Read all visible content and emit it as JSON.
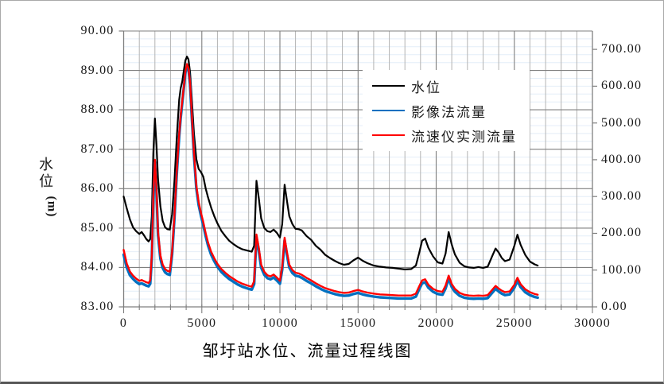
{
  "window": {
    "background": "#FFFFFF",
    "frame_border": "#A9A9A9"
  },
  "chart_data": {
    "type": "line",
    "title": "邹圩站水位、流量过程线图",
    "legend_position": "upper-center",
    "grid": {
      "major_color": "#7F7F7F",
      "minor_vertical_color": "#B3B3B3",
      "minor_horizontal_color": "#E4EEF8",
      "axis_color": "#7F7F7F",
      "grid_on": true
    },
    "left_axis": {
      "label": "水位",
      "unit_label": "(m)",
      "min": 83,
      "max": 90,
      "major_step": 1,
      "minor_step": 0.2,
      "tick_labels": [
        "90.00",
        "89.00",
        "88.00",
        "87.00",
        "86.00",
        "85.00",
        "84.00",
        "83.00"
      ]
    },
    "right_axis": {
      "min": 0,
      "max": 750,
      "major_step": 100,
      "tick_labels": [
        "700.00",
        "600.00",
        "500.00",
        "400.00",
        "300.00",
        "200.00",
        "100.00",
        "0.00"
      ]
    },
    "x_axis": {
      "min": 0,
      "max": 30000,
      "major_step": 5000,
      "minor_step": 1000,
      "tick_labels": [
        "0",
        "5000",
        "10000",
        "15000",
        "20000",
        "25000",
        "30000"
      ]
    },
    "x": [
      0,
      200,
      400,
      600,
      800,
      1000,
      1150,
      1300,
      1450,
      1600,
      1700,
      1800,
      1900,
      2000,
      2100,
      2200,
      2350,
      2500,
      2650,
      2800,
      2950,
      3100,
      3250,
      3400,
      3550,
      3650,
      3750,
      3850,
      3950,
      4050,
      4150,
      4250,
      4350,
      4500,
      4650,
      4800,
      4950,
      5100,
      5250,
      5400,
      5600,
      5800,
      6000,
      6250,
      6500,
      6750,
      7000,
      7300,
      7600,
      8000,
      8200,
      8350,
      8500,
      8650,
      8800,
      9000,
      9200,
      9400,
      9600,
      9800,
      10000,
      10150,
      10300,
      10450,
      10600,
      10800,
      11000,
      11200,
      11400,
      11700,
      12000,
      12300,
      12600,
      12900,
      13200,
      13500,
      13800,
      14100,
      14400,
      14700,
      15000,
      15300,
      15600,
      16000,
      16400,
      16800,
      17200,
      17600,
      18000,
      18400,
      18700,
      18900,
      19100,
      19300,
      19500,
      19800,
      20100,
      20400,
      20600,
      20800,
      21000,
      21200,
      21500,
      21800,
      22100,
      22400,
      22700,
      23000,
      23300,
      23600,
      23800,
      24000,
      24200,
      24400,
      24700,
      25000,
      25200,
      25400,
      25700,
      26000,
      26300,
      26500
    ],
    "series": [
      {
        "name": "水位",
        "axis": "left",
        "color": "#000000",
        "width": 2.2,
        "values": [
          85.8,
          85.5,
          85.22,
          85.02,
          84.92,
          84.85,
          84.9,
          84.82,
          84.72,
          84.66,
          84.72,
          85.3,
          86.9,
          87.78,
          87.1,
          86.25,
          85.55,
          85.18,
          85.02,
          84.97,
          84.96,
          85.35,
          86.2,
          87.3,
          88.25,
          88.55,
          88.72,
          89.0,
          89.25,
          89.35,
          89.28,
          88.95,
          88.35,
          87.4,
          86.75,
          86.5,
          86.42,
          86.3,
          86.0,
          85.78,
          85.52,
          85.3,
          85.12,
          84.93,
          84.8,
          84.68,
          84.6,
          84.52,
          84.46,
          84.42,
          84.4,
          84.55,
          86.2,
          85.75,
          85.25,
          85.0,
          84.92,
          84.9,
          84.96,
          84.88,
          84.76,
          85.1,
          86.1,
          85.7,
          85.3,
          85.1,
          84.98,
          84.97,
          84.94,
          84.8,
          84.7,
          84.55,
          84.45,
          84.32,
          84.24,
          84.17,
          84.11,
          84.07,
          84.09,
          84.18,
          84.25,
          84.17,
          84.11,
          84.05,
          84.02,
          84.0,
          83.99,
          83.97,
          83.95,
          83.96,
          84.05,
          84.35,
          84.68,
          84.73,
          84.5,
          84.28,
          84.13,
          84.1,
          84.35,
          84.9,
          84.58,
          84.33,
          84.12,
          84.03,
          84.0,
          83.99,
          84.01,
          83.99,
          84.02,
          84.3,
          84.48,
          84.38,
          84.24,
          84.16,
          84.2,
          84.55,
          84.83,
          84.58,
          84.32,
          84.15,
          84.08,
          84.05
        ]
      },
      {
        "name": "影像法流量",
        "axis": "right",
        "color": "#0070C0",
        "width": 3.4,
        "values": [
          142,
          107,
          86,
          76,
          68,
          62,
          64,
          61,
          58,
          56,
          63,
          132,
          292,
          393,
          312,
          196,
          131,
          106,
          94,
          89,
          87,
          142,
          243,
          363,
          463,
          514,
          555,
          596,
          636,
          656,
          646,
          605,
          524,
          413,
          322,
          277,
          247,
          222,
          192,
          167,
          142,
          124,
          109,
          95,
          85,
          76,
          69,
          61,
          55,
          49,
          47,
          62,
          190,
          152,
          107,
          87,
          78,
          75,
          80,
          72,
          63,
          102,
          181,
          142,
          107,
          92,
          85,
          83,
          79,
          71,
          64,
          56,
          49,
          43,
          39,
          35,
          32,
          30,
          31,
          35,
          38,
          34,
          31,
          28,
          26,
          25,
          24,
          23,
          23,
          23,
          28,
          47,
          64,
          67,
          52,
          41,
          35,
          33,
          50,
          77,
          54,
          41,
          30,
          25,
          23,
          22,
          23,
          22,
          24,
          39,
          49,
          42,
          36,
          32,
          34,
          52,
          71,
          54,
          40,
          32,
          27,
          25
        ]
      },
      {
        "name": "流速仪实测流量",
        "axis": "right",
        "color": "#FF0000",
        "width": 2.4,
        "values": [
          155,
          118,
          96,
          85,
          77,
          71,
          73,
          70,
          67,
          65,
          72,
          140,
          300,
          400,
          320,
          205,
          140,
          115,
          103,
          98,
          96,
          150,
          250,
          370,
          470,
          520,
          560,
          600,
          640,
          660,
          650,
          610,
          530,
          420,
          330,
          285,
          255,
          230,
          200,
          175,
          150,
          132,
          117,
          103,
          93,
          84,
          77,
          69,
          63,
          57,
          55,
          70,
          197,
          160,
          115,
          95,
          86,
          83,
          88,
          80,
          71,
          110,
          188,
          150,
          115,
          100,
          93,
          91,
          87,
          79,
          72,
          64,
          57,
          51,
          47,
          43,
          40,
          38,
          39,
          43,
          46,
          42,
          39,
          36,
          34,
          33,
          32,
          31,
          31,
          31,
          36,
          55,
          72,
          75,
          60,
          49,
          43,
          41,
          58,
          85,
          62,
          49,
          38,
          33,
          31,
          30,
          31,
          30,
          32,
          47,
          57,
          50,
          44,
          40,
          42,
          60,
          79,
          62,
          48,
          40,
          35,
          33
        ]
      }
    ]
  }
}
